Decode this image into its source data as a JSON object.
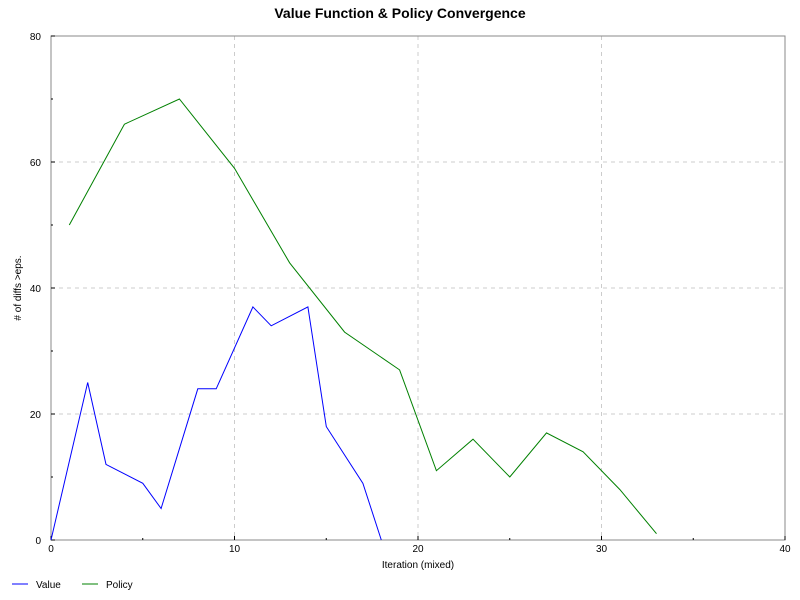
{
  "chart_data": {
    "type": "line",
    "title": "Value Function & Policy Convergence",
    "xlabel": "Iteration (mixed)",
    "ylabel": "# of diffs >eps.",
    "xlim": [
      0,
      40
    ],
    "ylim": [
      0,
      80
    ],
    "xticks": [
      0,
      10,
      20,
      30,
      40
    ],
    "yticks": [
      0,
      20,
      40,
      60,
      80
    ],
    "grid": true,
    "legend_position": "bottom-left",
    "series": [
      {
        "name": "Value",
        "color": "#0000ff",
        "x": [
          0,
          2,
          3,
          5,
          6,
          8,
          9,
          11,
          12,
          14,
          15,
          17,
          18
        ],
        "y": [
          0,
          25,
          12,
          9,
          5,
          24,
          24,
          37,
          34,
          37,
          18,
          9,
          0
        ]
      },
      {
        "name": "Policy",
        "color": "#008000",
        "x": [
          1,
          4,
          7,
          10,
          13,
          16,
          19,
          21,
          23,
          25,
          27,
          29,
          31,
          33
        ],
        "y": [
          50,
          66,
          70,
          59,
          44,
          33,
          27,
          11,
          16,
          10,
          17,
          14,
          8,
          1
        ]
      }
    ]
  }
}
